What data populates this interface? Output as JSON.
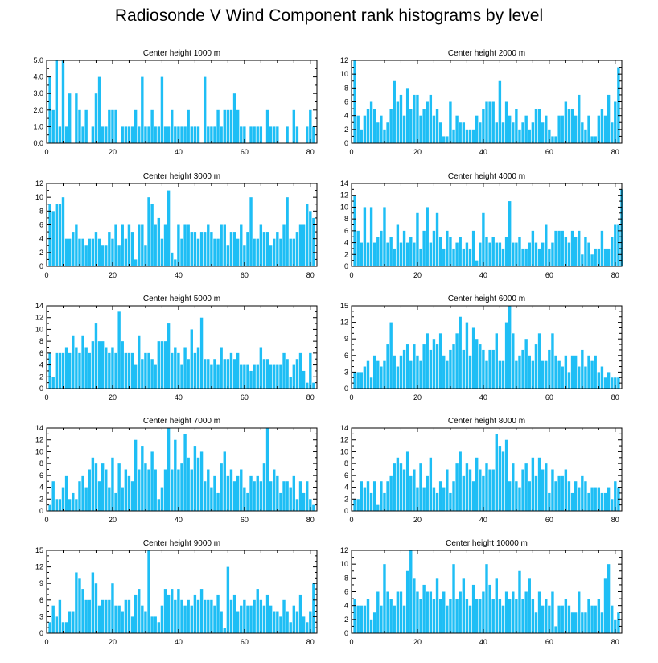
{
  "figure": {
    "title": "Radiosonde V Wind Component rank histograms by level"
  },
  "chart_data": [
    {
      "type": "bar",
      "title": "Center height 1000 m",
      "xlim": [
        0,
        82
      ],
      "ylim": [
        0,
        5
      ],
      "xticks": [
        0,
        20,
        40,
        60,
        80
      ],
      "xticklabels": [
        "0",
        "20",
        "40",
        "60",
        "80"
      ],
      "yticks": [
        0,
        1,
        2,
        3,
        4,
        5
      ],
      "yticklabels": [
        "0.0",
        "1.0",
        "2.0",
        "3.0",
        "4.0",
        "5.0"
      ],
      "x_start": 1,
      "values": [
        4,
        2,
        5,
        1,
        5,
        1,
        3,
        0,
        3,
        2,
        1,
        2,
        0,
        1,
        3,
        4,
        1,
        1,
        2,
        2,
        2,
        0,
        1,
        1,
        1,
        1,
        2,
        1,
        4,
        1,
        1,
        2,
        1,
        1,
        4,
        1,
        1,
        2,
        1,
        1,
        1,
        1,
        2,
        1,
        1,
        1,
        0,
        4,
        1,
        1,
        1,
        2,
        1,
        2,
        2,
        2,
        3,
        2,
        1,
        1,
        0,
        1,
        1,
        1,
        1,
        0,
        2,
        1,
        1,
        1,
        0,
        0,
        1,
        0,
        2,
        1,
        0,
        0,
        1,
        2,
        1
      ]
    },
    {
      "type": "bar",
      "title": "Center height 2000 m",
      "xlim": [
        0,
        82
      ],
      "ylim": [
        0,
        12
      ],
      "xticks": [
        0,
        20,
        40,
        60,
        80
      ],
      "xticklabels": [
        "0",
        "20",
        "40",
        "60",
        "80"
      ],
      "yticks": [
        0,
        2,
        4,
        6,
        8,
        10,
        12
      ],
      "yticklabels": [
        "0",
        "2",
        "4",
        "6",
        "8",
        "10",
        "12"
      ],
      "x_start": 1,
      "values": [
        12,
        4,
        2,
        4,
        5,
        6,
        5,
        3,
        4,
        2,
        3,
        5,
        9,
        6,
        7,
        4,
        8,
        5,
        7,
        7,
        4,
        5,
        6,
        7,
        4,
        5,
        3,
        1,
        1,
        6,
        2,
        4,
        3,
        3,
        2,
        2,
        2,
        4,
        3,
        5,
        6,
        6,
        6,
        3,
        9,
        3,
        6,
        4,
        3,
        5,
        2,
        3,
        4,
        2,
        3,
        5,
        5,
        3,
        4,
        2,
        1,
        1,
        4,
        4,
        6,
        5,
        5,
        4,
        7,
        3,
        2,
        4,
        1,
        1,
        4,
        5,
        4,
        7,
        3,
        6,
        11
      ]
    },
    {
      "type": "bar",
      "title": "Center height 3000 m",
      "xlim": [
        0,
        82
      ],
      "ylim": [
        0,
        12
      ],
      "xticks": [
        0,
        20,
        40,
        60,
        80
      ],
      "xticklabels": [
        "0",
        "20",
        "40",
        "60",
        "80"
      ],
      "yticks": [
        0,
        2,
        4,
        6,
        8,
        10,
        12
      ],
      "yticklabels": [
        "0",
        "2",
        "4",
        "6",
        "8",
        "10",
        "12"
      ],
      "x_start": 1,
      "values": [
        9,
        8,
        9,
        9,
        10,
        4,
        4,
        5,
        6,
        4,
        4,
        3,
        4,
        4,
        5,
        4,
        3,
        3,
        5,
        4,
        6,
        3,
        6,
        4,
        6,
        5,
        1,
        6,
        6,
        3,
        10,
        9,
        6,
        7,
        4,
        6,
        11,
        2,
        1,
        6,
        4,
        6,
        6,
        5,
        5,
        4,
        5,
        5,
        6,
        5,
        4,
        4,
        6,
        6,
        3,
        5,
        5,
        4,
        6,
        3,
        5,
        10,
        4,
        4,
        6,
        5,
        5,
        3,
        4,
        5,
        4,
        6,
        10,
        4,
        4,
        5,
        6,
        6,
        9,
        8,
        7
      ]
    },
    {
      "type": "bar",
      "title": "Center height 4000 m",
      "xlim": [
        0,
        82
      ],
      "ylim": [
        0,
        14
      ],
      "xticks": [
        0,
        20,
        40,
        60,
        80
      ],
      "xticklabels": [
        "0",
        "20",
        "40",
        "60",
        "80"
      ],
      "yticks": [
        0,
        2,
        4,
        6,
        8,
        10,
        12,
        14
      ],
      "yticklabels": [
        "0",
        "2",
        "4",
        "6",
        "8",
        "10",
        "12",
        "14"
      ],
      "x_start": 1,
      "values": [
        12,
        6,
        4,
        10,
        4,
        10,
        4,
        5,
        6,
        10,
        4,
        5,
        3,
        7,
        4,
        6,
        4,
        5,
        4,
        9,
        3,
        6,
        10,
        4,
        6,
        9,
        5,
        3,
        6,
        5,
        3,
        4,
        5,
        3,
        4,
        3,
        6,
        1,
        4,
        9,
        5,
        4,
        5,
        4,
        4,
        3,
        5,
        11,
        4,
        4,
        5,
        3,
        3,
        4,
        6,
        4,
        3,
        4,
        7,
        3,
        4,
        6,
        6,
        6,
        5,
        4,
        6,
        5,
        6,
        2,
        5,
        4,
        2,
        3,
        3,
        6,
        3,
        3,
        5,
        7,
        7,
        13
      ]
    },
    {
      "type": "bar",
      "title": "Center height 5000 m",
      "xlim": [
        0,
        82
      ],
      "ylim": [
        0,
        14
      ],
      "xticks": [
        0,
        20,
        40,
        60,
        80
      ],
      "xticklabels": [
        "0",
        "20",
        "40",
        "60",
        "80"
      ],
      "yticks": [
        0,
        2,
        4,
        6,
        8,
        10,
        12,
        14
      ],
      "yticklabels": [
        "0",
        "2",
        "4",
        "6",
        "8",
        "10",
        "12",
        "14"
      ],
      "x_start": 1,
      "values": [
        6,
        2,
        6,
        6,
        6,
        7,
        6,
        9,
        7,
        6,
        9,
        7,
        6,
        8,
        11,
        8,
        8,
        7,
        6,
        7,
        6,
        13,
        8,
        6,
        6,
        6,
        4,
        9,
        5,
        6,
        6,
        5,
        4,
        8,
        8,
        8,
        11,
        6,
        7,
        6,
        4,
        7,
        5,
        10,
        6,
        7,
        12,
        5,
        5,
        4,
        5,
        4,
        7,
        5,
        5,
        6,
        5,
        6,
        4,
        4,
        4,
        3,
        4,
        4,
        7,
        5,
        5,
        4,
        4,
        4,
        4,
        6,
        5,
        2,
        4,
        5,
        6,
        3,
        1,
        6,
        1
      ]
    },
    {
      "type": "bar",
      "title": "Center height 6000 m",
      "xlim": [
        0,
        82
      ],
      "ylim": [
        0,
        15
      ],
      "xticks": [
        0,
        20,
        40,
        60,
        80
      ],
      "xticklabels": [
        "0",
        "20",
        "40",
        "60",
        "80"
      ],
      "yticks": [
        0,
        3,
        6,
        9,
        12,
        15
      ],
      "yticklabels": [
        "0",
        "3",
        "6",
        "9",
        "12",
        "15"
      ],
      "x_start": 1,
      "values": [
        3,
        3,
        3,
        4,
        5,
        2,
        6,
        5,
        4,
        5,
        8,
        12,
        6,
        4,
        6,
        7,
        8,
        5,
        8,
        6,
        5,
        8,
        10,
        7,
        9,
        8,
        10,
        6,
        5,
        7,
        8,
        10,
        13,
        7,
        12,
        6,
        11,
        9,
        8,
        7,
        5,
        7,
        7,
        10,
        5,
        5,
        12,
        15,
        10,
        5,
        6,
        7,
        9,
        6,
        5,
        8,
        10,
        5,
        5,
        7,
        10,
        6,
        5,
        4,
        6,
        3,
        6,
        6,
        4,
        7,
        4,
        6,
        5,
        6,
        3,
        4,
        2,
        3,
        2,
        2,
        2
      ]
    },
    {
      "type": "bar",
      "title": "Center height 7000 m",
      "xlim": [
        0,
        82
      ],
      "ylim": [
        0,
        14
      ],
      "xticks": [
        0,
        20,
        40,
        60,
        80
      ],
      "xticklabels": [
        "0",
        "20",
        "40",
        "60",
        "80"
      ],
      "yticks": [
        0,
        2,
        4,
        6,
        8,
        10,
        12,
        14
      ],
      "yticklabels": [
        "0",
        "2",
        "4",
        "6",
        "8",
        "10",
        "12",
        "14"
      ],
      "x_start": 1,
      "values": [
        1,
        5,
        2,
        2,
        4,
        6,
        2,
        3,
        2,
        5,
        6,
        4,
        7,
        9,
        8,
        5,
        8,
        7,
        4,
        9,
        3,
        8,
        4,
        7,
        6,
        5,
        12,
        7,
        11,
        8,
        7,
        10,
        7,
        2,
        4,
        7,
        14,
        7,
        12,
        7,
        8,
        13,
        9,
        7,
        11,
        9,
        10,
        5,
        7,
        4,
        6,
        3,
        8,
        10,
        6,
        7,
        5,
        6,
        7,
        4,
        3,
        6,
        5,
        6,
        5,
        8,
        14,
        5,
        7,
        6,
        3,
        5,
        5,
        4,
        6,
        2,
        5,
        3,
        5,
        2,
        1
      ]
    },
    {
      "type": "bar",
      "title": "Center height 8000 m",
      "xlim": [
        0,
        82
      ],
      "ylim": [
        0,
        14
      ],
      "xticks": [
        0,
        20,
        40,
        60,
        80
      ],
      "xticklabels": [
        "0",
        "20",
        "40",
        "60",
        "80"
      ],
      "yticks": [
        0,
        2,
        4,
        6,
        8,
        10,
        12,
        14
      ],
      "yticklabels": [
        "0",
        "2",
        "4",
        "6",
        "8",
        "10",
        "12",
        "14"
      ],
      "x_start": 1,
      "values": [
        2,
        2,
        5,
        4,
        5,
        3,
        5,
        1,
        5,
        3,
        5,
        6,
        8,
        9,
        8,
        7,
        10,
        6,
        7,
        4,
        8,
        4,
        6,
        9,
        4,
        3,
        5,
        4,
        7,
        3,
        5,
        8,
        10,
        6,
        8,
        7,
        5,
        9,
        7,
        6,
        8,
        7,
        7,
        13,
        11,
        10,
        12,
        5,
        8,
        5,
        4,
        7,
        8,
        5,
        9,
        6,
        9,
        7,
        8,
        3,
        7,
        5,
        6,
        6,
        7,
        5,
        3,
        5,
        4,
        6,
        5,
        3,
        4,
        4,
        4,
        3,
        3,
        4,
        2,
        5,
        4
      ]
    },
    {
      "type": "bar",
      "title": "Center height 9000 m",
      "xlim": [
        0,
        82
      ],
      "ylim": [
        0,
        15
      ],
      "xticks": [
        0,
        20,
        40,
        60,
        80
      ],
      "xticklabels": [
        "0",
        "20",
        "40",
        "60",
        "80"
      ],
      "yticks": [
        0,
        3,
        6,
        9,
        12,
        15
      ],
      "yticklabels": [
        "0",
        "3",
        "6",
        "9",
        "12",
        "15"
      ],
      "x_start": 1,
      "values": [
        2,
        5,
        3,
        6,
        2,
        2,
        4,
        4,
        11,
        10,
        8,
        6,
        6,
        11,
        9,
        5,
        6,
        6,
        6,
        9,
        5,
        5,
        4,
        6,
        6,
        3,
        7,
        8,
        5,
        4,
        15,
        3,
        3,
        2,
        5,
        8,
        7,
        8,
        6,
        8,
        6,
        5,
        6,
        5,
        7,
        6,
        8,
        6,
        6,
        6,
        5,
        7,
        4,
        1,
        12,
        6,
        7,
        4,
        5,
        6,
        5,
        5,
        6,
        8,
        6,
        5,
        7,
        5,
        4,
        4,
        3,
        6,
        4,
        2,
        5,
        4,
        7,
        3,
        2,
        4,
        9
      ]
    },
    {
      "type": "bar",
      "title": "Center height 10000 m",
      "xlim": [
        0,
        82
      ],
      "ylim": [
        0,
        12
      ],
      "xticks": [
        0,
        20,
        40,
        60,
        80
      ],
      "xticklabels": [
        "0",
        "20",
        "40",
        "60",
        "80"
      ],
      "yticks": [
        0,
        2,
        4,
        6,
        8,
        10,
        12
      ],
      "yticklabels": [
        "0",
        "2",
        "4",
        "6",
        "8",
        "10",
        "12"
      ],
      "x_start": 1,
      "values": [
        5,
        4,
        4,
        4,
        5,
        2,
        3,
        6,
        4,
        10,
        6,
        5,
        4,
        6,
        6,
        4,
        9,
        12,
        8,
        6,
        5,
        7,
        6,
        6,
        5,
        8,
        5,
        6,
        4,
        5,
        10,
        5,
        6,
        8,
        5,
        4,
        7,
        5,
        5,
        6,
        10,
        7,
        5,
        8,
        5,
        4,
        6,
        5,
        6,
        5,
        9,
        5,
        6,
        8,
        5,
        3,
        6,
        4,
        5,
        4,
        6,
        1,
        4,
        4,
        5,
        4,
        3,
        3,
        6,
        3,
        3,
        5,
        4,
        4,
        5,
        3,
        8,
        10,
        4,
        2,
        3
      ]
    }
  ]
}
